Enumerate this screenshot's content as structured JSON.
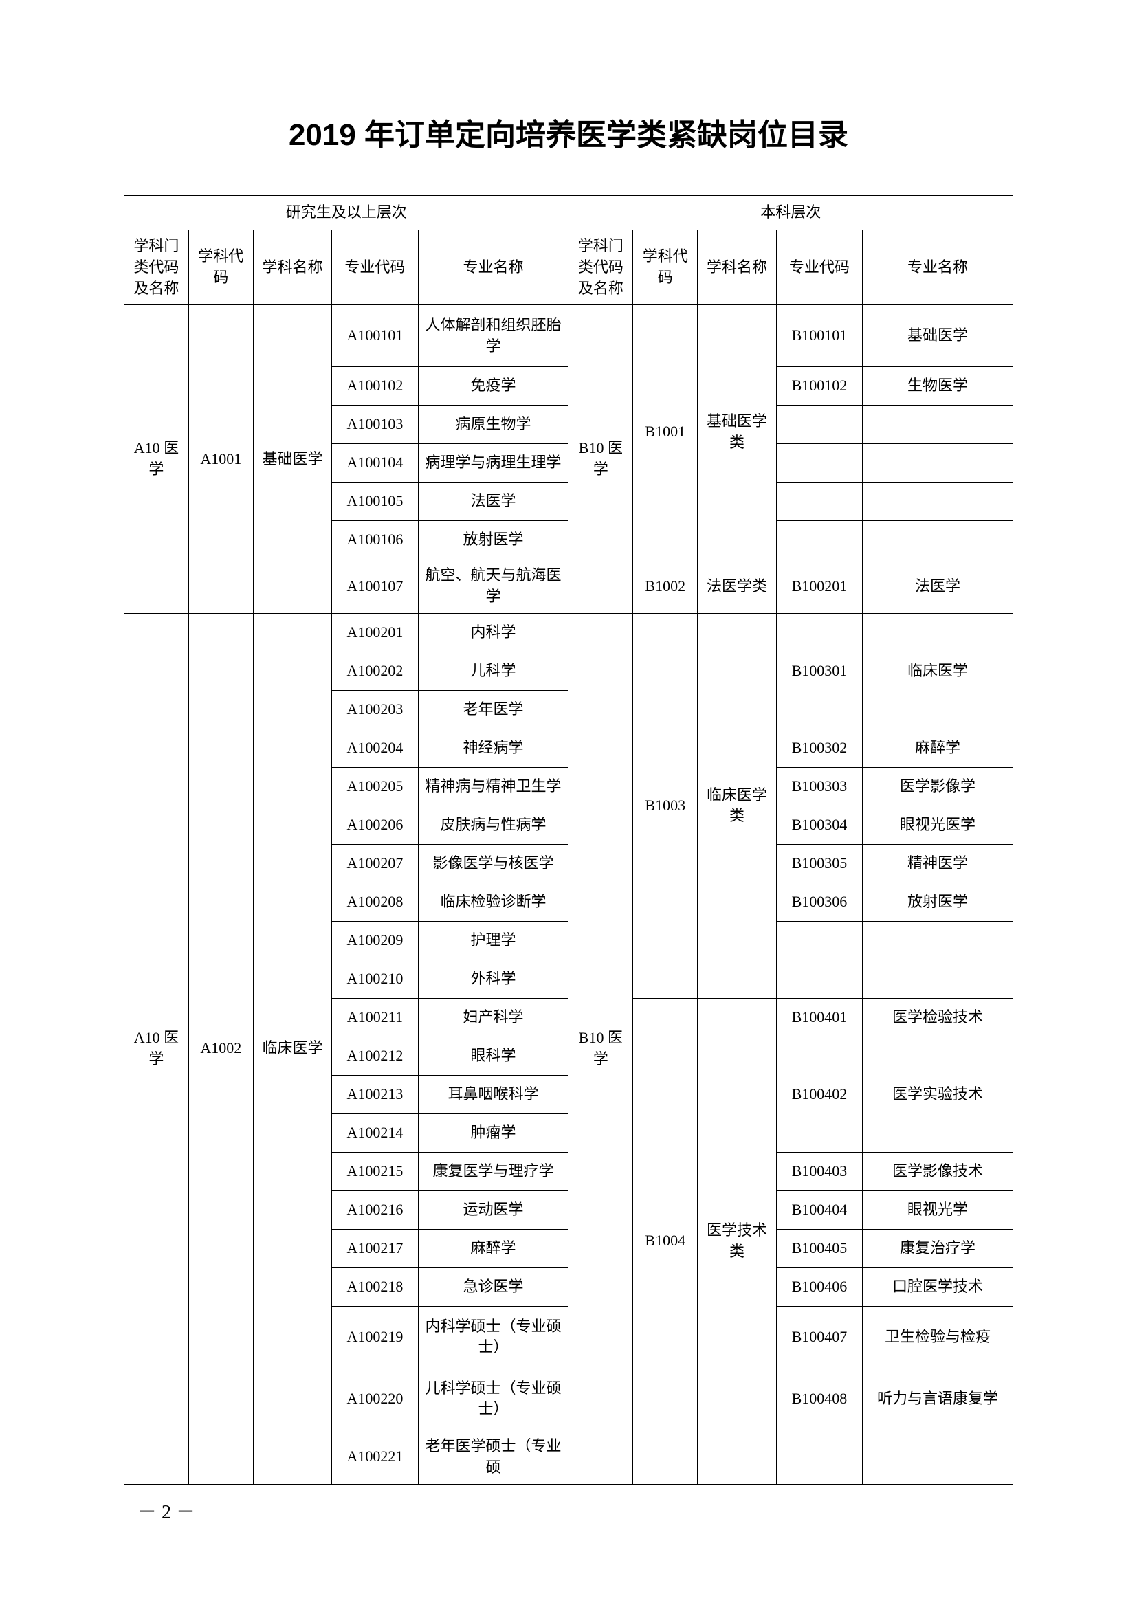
{
  "title": "2019 年订单定向培养医学类紧缺岗位目录",
  "page_number": "－ 2 －",
  "header_level1": {
    "postgrad": "研究生及以上层次",
    "undergrad": "本科层次"
  },
  "header_level2": {
    "cat_code_name": "学科门类代码及名称",
    "disc_code": "学科代码",
    "disc_name": "学科名称",
    "spec_code": "专业代码",
    "spec_name": "专业名称"
  },
  "left_cat": "A10 医学",
  "right_cat": "B10 医学",
  "group1": {
    "left_disc_code": "A1001",
    "left_disc_name": "基础医学",
    "right_disc_code": "B1001",
    "right_disc_name": "基础医学类",
    "right_disc_code2": "B1002",
    "right_disc_name2": "法医学类",
    "left_rows": [
      {
        "code": "A100101",
        "name": "人体解剖和组织胚胎学"
      },
      {
        "code": "A100102",
        "name": "免疫学"
      },
      {
        "code": "A100103",
        "name": "病原生物学"
      },
      {
        "code": "A100104",
        "name": "病理学与病理生理学"
      },
      {
        "code": "A100105",
        "name": "法医学"
      },
      {
        "code": "A100106",
        "name": "放射医学"
      },
      {
        "code": "A100107",
        "name": "航空、航天与航海医学"
      }
    ],
    "right_rows": [
      {
        "code": "B100101",
        "name": "基础医学"
      },
      {
        "code": "B100102",
        "name": "生物医学"
      },
      {
        "code": "",
        "name": ""
      },
      {
        "code": "",
        "name": ""
      },
      {
        "code": "",
        "name": ""
      },
      {
        "code": "",
        "name": ""
      },
      {
        "code": "B100201",
        "name": "法医学"
      }
    ]
  },
  "group2": {
    "left_disc_code": "A1002",
    "left_disc_name": "临床医学",
    "right_disc_code1": "B1003",
    "right_disc_name1": "临床医学类",
    "right_disc_code2": "B1004",
    "right_disc_name2": "医学技术类",
    "left_rows": [
      {
        "code": "A100201",
        "name": "内科学"
      },
      {
        "code": "A100202",
        "name": "儿科学"
      },
      {
        "code": "A100203",
        "name": "老年医学"
      },
      {
        "code": "A100204",
        "name": "神经病学"
      },
      {
        "code": "A100205",
        "name": "精神病与精神卫生学"
      },
      {
        "code": "A100206",
        "name": "皮肤病与性病学"
      },
      {
        "code": "A100207",
        "name": "影像医学与核医学"
      },
      {
        "code": "A100208",
        "name": "临床检验诊断学"
      },
      {
        "code": "A100209",
        "name": "护理学"
      },
      {
        "code": "A100210",
        "name": "外科学"
      },
      {
        "code": "A100211",
        "name": "妇产科学"
      },
      {
        "code": "A100212",
        "name": "眼科学"
      },
      {
        "code": "A100213",
        "name": "耳鼻咽喉科学"
      },
      {
        "code": "A100214",
        "name": "肿瘤学"
      },
      {
        "code": "A100215",
        "name": "康复医学与理疗学"
      },
      {
        "code": "A100216",
        "name": "运动医学"
      },
      {
        "code": "A100217",
        "name": "麻醉学"
      },
      {
        "code": "A100218",
        "name": "急诊医学"
      },
      {
        "code": "A100219",
        "name": "内科学硕士（专业硕士）"
      },
      {
        "code": "A100220",
        "name": "儿科学硕士（专业硕士）"
      },
      {
        "code": "A100221",
        "name": "老年医学硕士（专业硕"
      }
    ],
    "right_b1003": [
      {
        "code": "B100301",
        "name": "临床医学",
        "span": 3
      },
      {
        "code": "B100302",
        "name": "麻醉学",
        "span": 1
      },
      {
        "code": "B100303",
        "name": "医学影像学",
        "span": 1
      },
      {
        "code": "B100304",
        "name": "眼视光医学",
        "span": 1
      },
      {
        "code": "B100305",
        "name": "精神医学",
        "span": 1
      },
      {
        "code": "B100306",
        "name": "放射医学",
        "span": 1
      },
      {
        "code": "",
        "name": "",
        "span": 1
      },
      {
        "code": "",
        "name": "",
        "span": 1
      }
    ],
    "right_b1004": [
      {
        "code": "B100401",
        "name": "医学检验技术",
        "span": 1
      },
      {
        "code": "B100402",
        "name": "医学实验技术",
        "span": 3
      },
      {
        "code": "B100403",
        "name": "医学影像技术",
        "span": 1
      },
      {
        "code": "B100404",
        "name": "眼视光学",
        "span": 1
      },
      {
        "code": "B100405",
        "name": "康复治疗学",
        "span": 1
      },
      {
        "code": "B100406",
        "name": "口腔医学技术",
        "span": 1
      },
      {
        "code": "B100407",
        "name": "卫生检验与检疫",
        "span": 1
      },
      {
        "code": "B100408",
        "name": "听力与言语康复学",
        "span": 1
      },
      {
        "code": "",
        "name": "",
        "span": 1
      }
    ]
  }
}
